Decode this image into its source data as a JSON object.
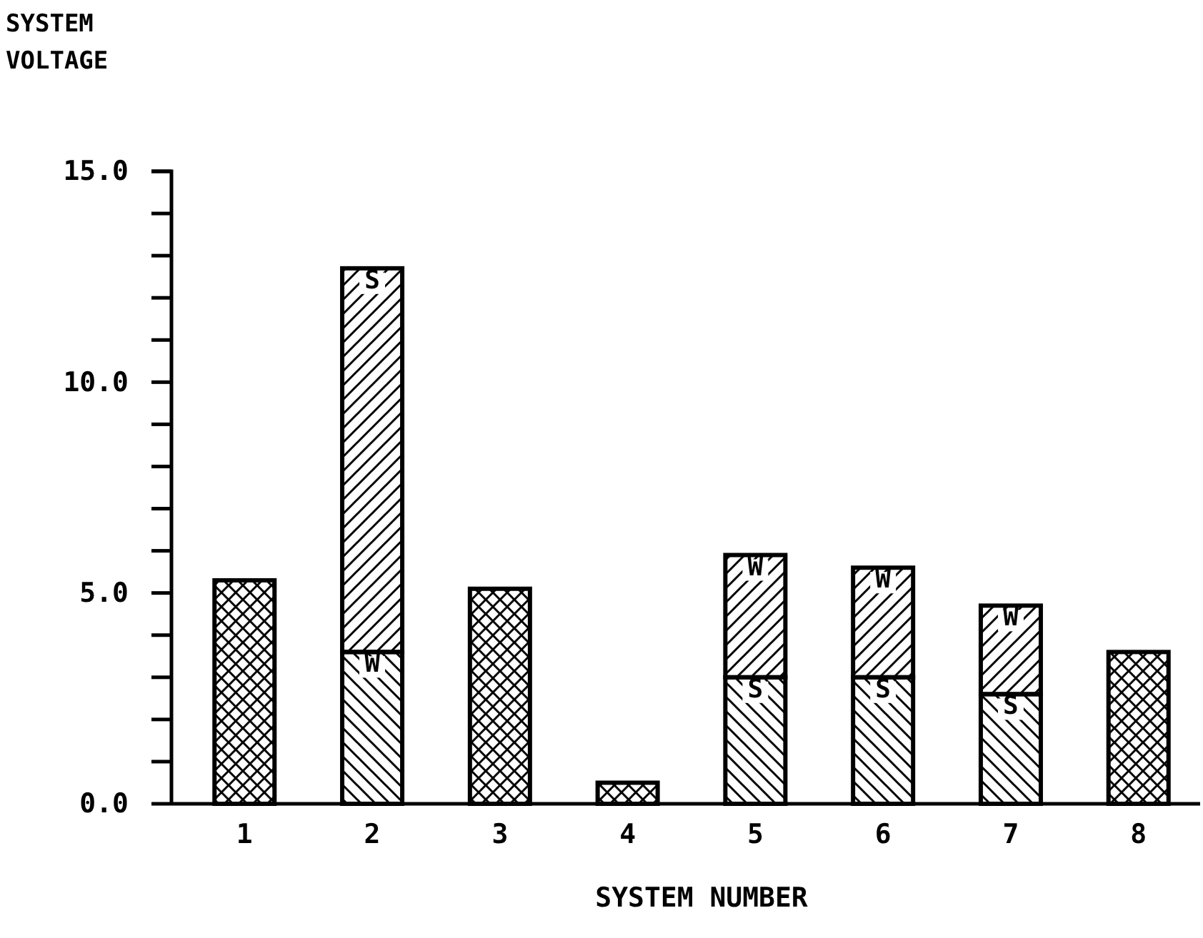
{
  "chart_data": {
    "type": "bar",
    "stacked": true,
    "ylabel": "SYSTEM\nVOLTAGE",
    "xlabel": "SYSTEM NUMBER",
    "categories": [
      "1",
      "2",
      "3",
      "4",
      "5",
      "6",
      "7",
      "8"
    ],
    "series": [
      {
        "color": "#000000",
        "values": [
          5.3,
          null,
          5.1,
          0.5,
          null,
          null,
          null,
          3.6
        ]
      },
      {
        "color": "#000000",
        "values": [
          null,
          3.6,
          null,
          null,
          3.0,
          3.0,
          2.6,
          null
        ]
      },
      {
        "color": "#000000",
        "values": [
          null,
          9.1,
          null,
          null,
          2.9,
          2.6,
          2.1,
          null
        ]
      }
    ],
    "ylim": [
      0,
      15
    ],
    "yticks": [
      {
        "value": 0,
        "label": "0.0"
      },
      {
        "value": 1,
        "label": null
      },
      {
        "value": 2,
        "label": null
      },
      {
        "value": 3,
        "label": null
      },
      {
        "value": 4,
        "label": null
      },
      {
        "value": 5,
        "label": "5.0"
      },
      {
        "value": 6,
        "label": null
      },
      {
        "value": 7,
        "label": null
      },
      {
        "value": 8,
        "label": null
      },
      {
        "value": 9,
        "label": null
      },
      {
        "value": 10,
        "label": "10.0"
      },
      {
        "value": 11,
        "label": null
      },
      {
        "value": 12,
        "label": null
      },
      {
        "value": 13,
        "label": null
      },
      {
        "value": 14,
        "label": null
      },
      {
        "value": 15,
        "label": "15.0"
      }
    ],
    "grid": false,
    "annotations": [
      {
        "text": "S",
        "x": "2",
        "y": 12.7
      },
      {
        "text": "W",
        "x": "2",
        "y": 3.6
      },
      {
        "text": "W",
        "x": "5",
        "y": 5.9
      },
      {
        "text": "S",
        "x": "5",
        "y": 3.0
      },
      {
        "text": "W",
        "x": "6",
        "y": 5.6
      },
      {
        "text": "S",
        "x": "6",
        "y": 3.0
      },
      {
        "text": "W",
        "x": "7",
        "y": 4.7
      },
      {
        "text": "S",
        "x": "7",
        "y": 2.6
      }
    ]
  }
}
